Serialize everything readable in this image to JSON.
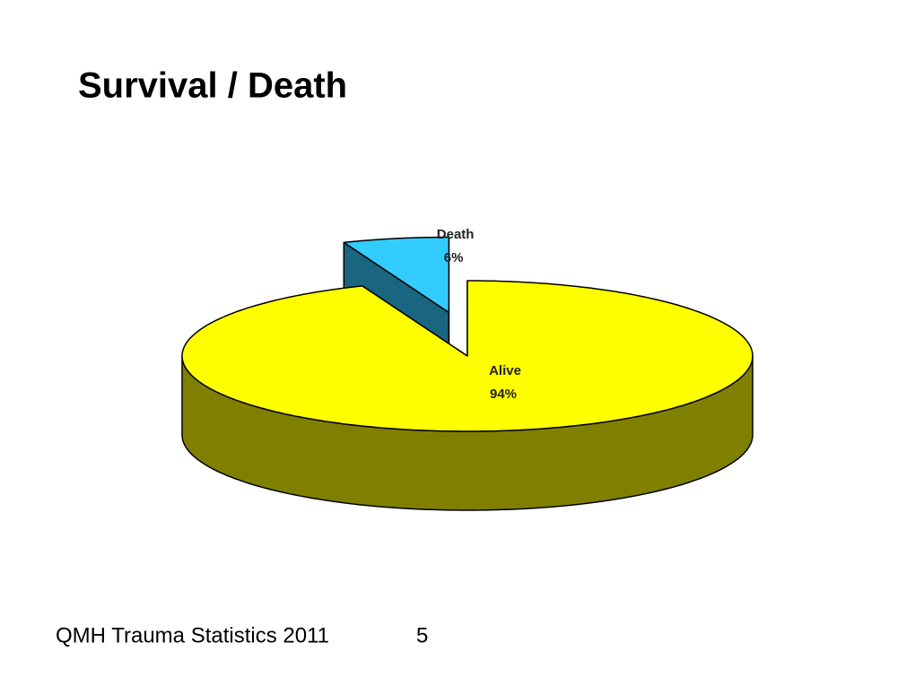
{
  "chart_data": {
    "type": "pie",
    "title": "Survival / Death",
    "categories": [
      "Alive",
      "Death"
    ],
    "values": [
      94,
      6
    ],
    "value_labels": [
      "94%",
      "6%"
    ],
    "colors": [
      "#ffff00",
      "#33ccff"
    ],
    "exploded": "Death"
  },
  "footer": {
    "text": "QMH Trauma Statistics 2011",
    "page": "5"
  }
}
